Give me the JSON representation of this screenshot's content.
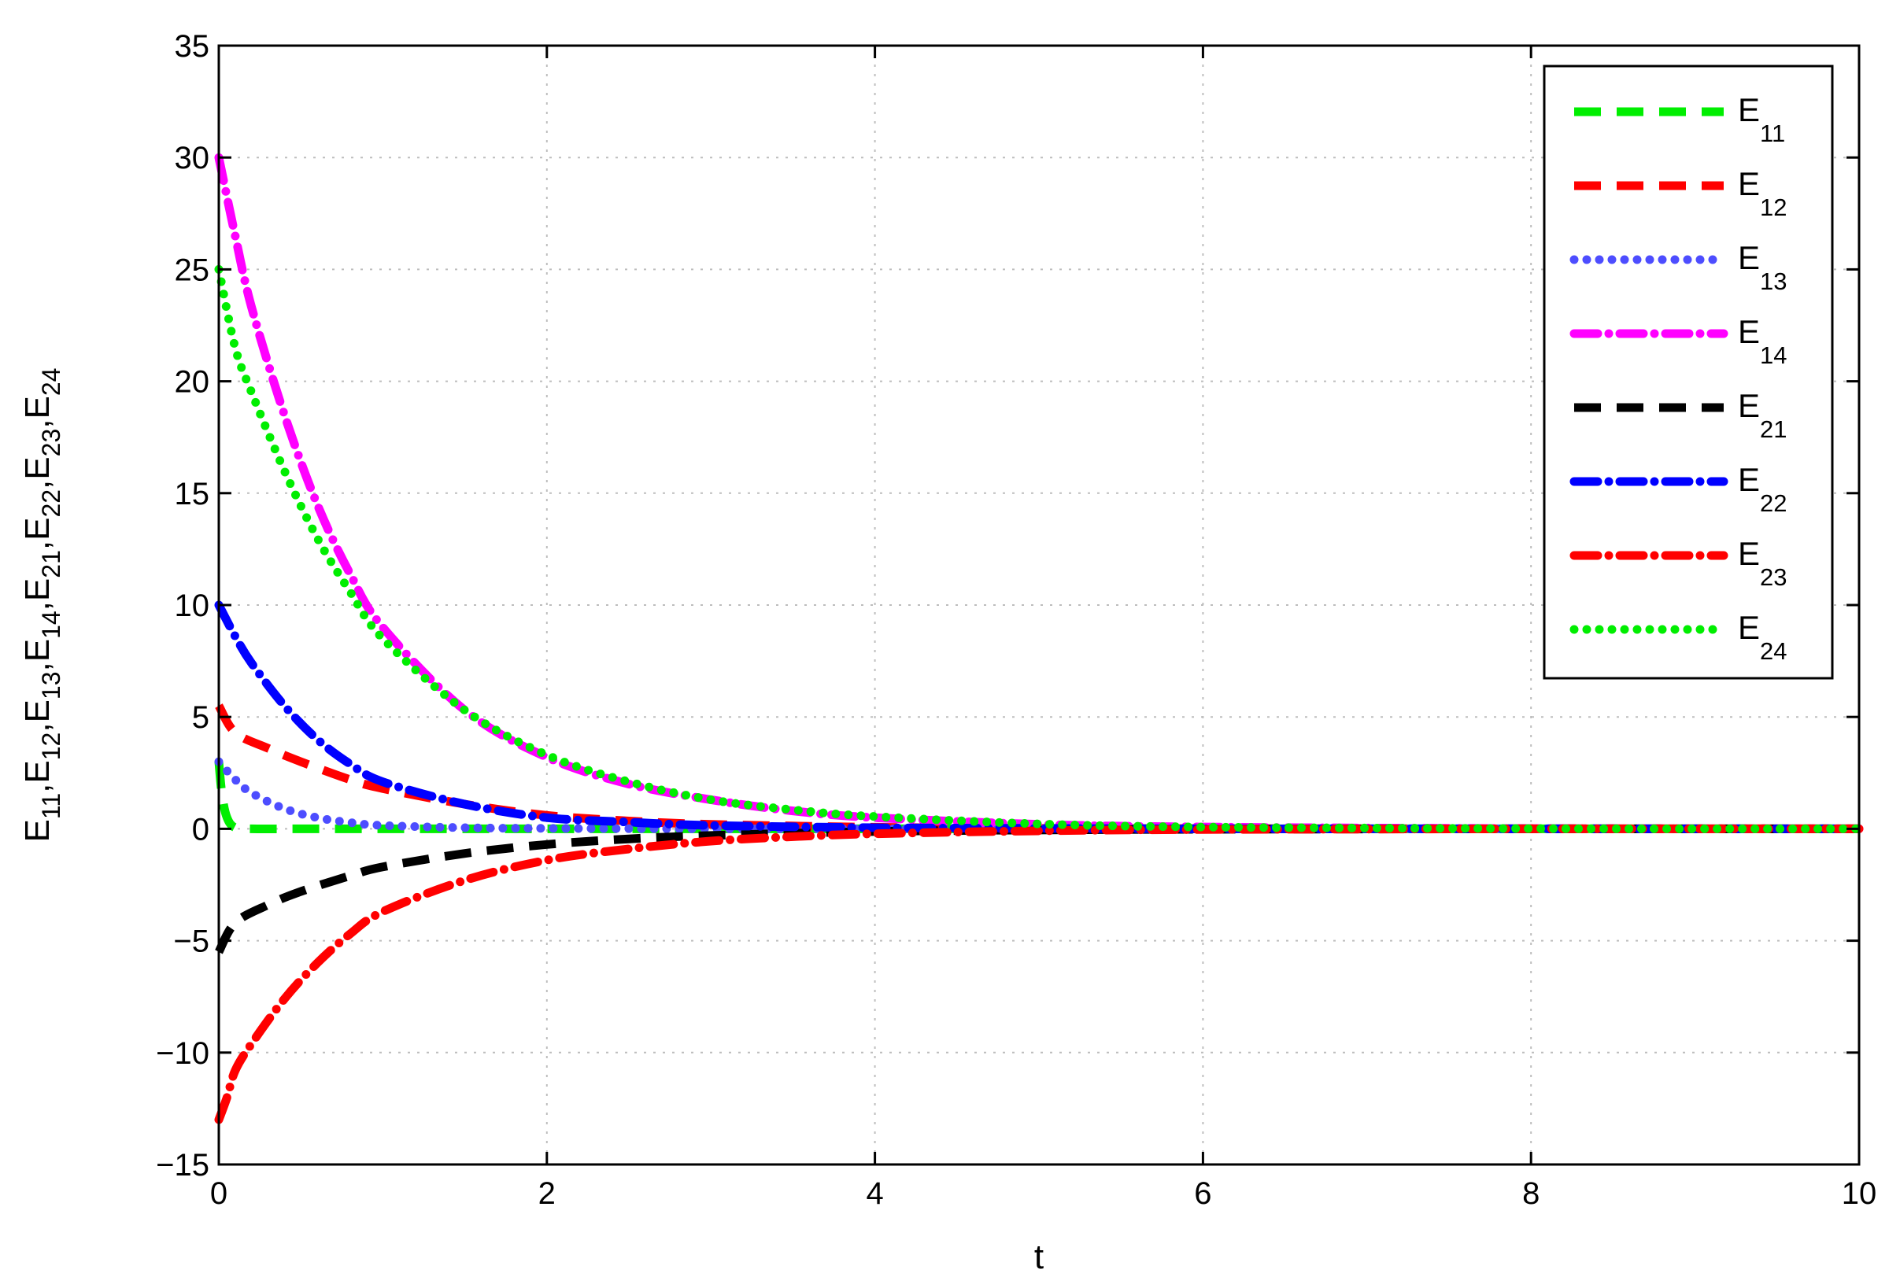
{
  "chart_data": {
    "type": "line",
    "xlabel": "t",
    "ylabel_parts": [
      {
        "base": "E",
        "sub": "11",
        "sep": ","
      },
      {
        "base": "E",
        "sub": "12",
        "sep": ","
      },
      {
        "base": "E",
        "sub": "13",
        "sep": ","
      },
      {
        "base": "E",
        "sub": "14",
        "sep": ","
      },
      {
        "base": "E",
        "sub": "21",
        "sep": ","
      },
      {
        "base": "E",
        "sub": "22",
        "sep": ","
      },
      {
        "base": "E",
        "sub": "23",
        "sep": ","
      },
      {
        "base": "E",
        "sub": "24",
        "sep": ""
      }
    ],
    "xlim": [
      0,
      10
    ],
    "ylim": [
      -15,
      35
    ],
    "xticks": [
      0,
      2,
      4,
      6,
      8,
      10
    ],
    "xtick_labels": [
      "0",
      "2",
      "4",
      "6",
      "8",
      "10"
    ],
    "yticks": [
      -15,
      -10,
      -5,
      0,
      5,
      10,
      15,
      20,
      25,
      30,
      35
    ],
    "ytick_labels": [
      "−15",
      "−10",
      "−5",
      "0",
      "5",
      "10",
      "15",
      "20",
      "25",
      "30",
      "35"
    ],
    "grid": true,
    "legend_position": "top-right",
    "series": [
      {
        "name": "E",
        "sub": "11",
        "color": "#00ee00",
        "style": "dashed",
        "x": [
          0,
          0.02,
          0.05,
          0.1,
          0.2,
          0.5,
          1,
          2,
          4,
          6,
          8,
          10
        ],
        "y": [
          3,
          1.5,
          0.5,
          0.05,
          0,
          0,
          0,
          0,
          0,
          0,
          0,
          0
        ]
      },
      {
        "name": "E",
        "sub": "12",
        "color": "#ff0000",
        "style": "dashed",
        "x": [
          0,
          0.1,
          0.3,
          0.5,
          0.8,
          1,
          1.5,
          2,
          2.5,
          3,
          4,
          5,
          6,
          8,
          10
        ],
        "y": [
          5.5,
          4.3,
          3.6,
          3,
          2.2,
          1.8,
          1.1,
          0.6,
          0.35,
          0.2,
          0.07,
          0.02,
          0.01,
          0,
          0
        ]
      },
      {
        "name": "E",
        "sub": "13",
        "color": "#4d4dff",
        "style": "dotted",
        "x": [
          0,
          0.1,
          0.2,
          0.4,
          0.6,
          0.8,
          1,
          1.5,
          2,
          3,
          4,
          6,
          8,
          10
        ],
        "y": [
          3,
          2.2,
          1.6,
          0.9,
          0.5,
          0.28,
          0.15,
          0.05,
          0.02,
          0,
          0,
          0,
          0,
          0
        ]
      },
      {
        "name": "E",
        "sub": "14",
        "color": "#ff00ff",
        "style": "dashdot",
        "x": [
          0,
          0.1,
          0.2,
          0.4,
          0.6,
          0.8,
          1,
          1.5,
          2,
          2.5,
          3,
          3.5,
          4,
          5,
          6,
          8,
          10
        ],
        "y": [
          30,
          26.5,
          23.3,
          18.5,
          14.5,
          11.4,
          9,
          5.3,
          3.2,
          2,
          1.3,
          0.8,
          0.5,
          0.2,
          0.08,
          0.01,
          0
        ]
      },
      {
        "name": "E",
        "sub": "21",
        "color": "#000000",
        "style": "dashed",
        "x": [
          0,
          0.1,
          0.3,
          0.5,
          0.8,
          1,
          1.5,
          2,
          2.5,
          3,
          4,
          5,
          6,
          8,
          10
        ],
        "y": [
          -5.5,
          -4.2,
          -3.4,
          -2.8,
          -2.1,
          -1.7,
          -1.1,
          -0.7,
          -0.45,
          -0.3,
          -0.12,
          -0.05,
          -0.02,
          0,
          0
        ]
      },
      {
        "name": "E",
        "sub": "22",
        "color": "#0000ff",
        "style": "dashdot",
        "x": [
          0,
          0.1,
          0.2,
          0.4,
          0.6,
          0.8,
          1,
          1.5,
          2,
          2.5,
          3,
          4,
          5,
          6,
          8,
          10
        ],
        "y": [
          10,
          8.6,
          7.4,
          5.5,
          4,
          2.9,
          2.1,
          1.1,
          0.5,
          0.3,
          0.15,
          0.05,
          0.02,
          0,
          0,
          0
        ]
      },
      {
        "name": "E",
        "sub": "23",
        "color": "#ff0000",
        "style": "dashdot",
        "x": [
          0,
          0.05,
          0.1,
          0.2,
          0.4,
          0.6,
          0.8,
          1,
          1.5,
          2,
          2.5,
          3,
          3.5,
          4,
          5,
          6,
          8,
          10
        ],
        "y": [
          -13,
          -12,
          -10.8,
          -9.6,
          -7.6,
          -6,
          -4.7,
          -3.7,
          -2.3,
          -1.4,
          -0.9,
          -0.55,
          -0.35,
          -0.22,
          -0.09,
          -0.03,
          0,
          0
        ]
      },
      {
        "name": "E",
        "sub": "24",
        "color": "#00ee00",
        "style": "dotted",
        "x": [
          0,
          0.1,
          0.2,
          0.4,
          0.6,
          0.8,
          1,
          1.5,
          2,
          2.5,
          3,
          3.5,
          4,
          5,
          6,
          8,
          10
        ],
        "y": [
          25,
          21.5,
          19.5,
          16,
          13,
          10.6,
          8.5,
          5.3,
          3.3,
          2.1,
          1.3,
          0.85,
          0.55,
          0.22,
          0.08,
          0.01,
          0
        ]
      }
    ]
  }
}
